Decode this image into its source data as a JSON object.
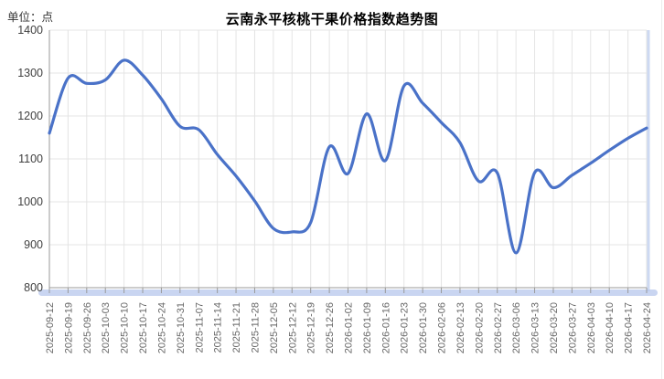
{
  "header": {
    "unit_label": "单位：点",
    "title": "云南永平核桃干果价格指数趋势图"
  },
  "chart_data": {
    "type": "line",
    "title": "云南永平核桃干果价格指数趋势图",
    "unit": "点",
    "smooth": true,
    "grid": true,
    "legend": "none",
    "categories": [
      "2025-09-12",
      "2025-09-19",
      "2025-09-26",
      "2025-10-03",
      "2025-10-10",
      "2025-10-17",
      "2025-10-24",
      "2025-10-31",
      "2025-11-07",
      "2025-11-14",
      "2025-11-21",
      "2025-11-28",
      "2025-12-05",
      "2025-12-12",
      "2025-12-19",
      "2025-12-26",
      "2026-01-02",
      "2026-01-09",
      "2026-01-16",
      "2026-01-23",
      "2026-01-30",
      "2026-02-06",
      "2026-02-13",
      "2026-02-20",
      "2026-02-27",
      "2026-03-06",
      "2026-03-13",
      "2026-03-20",
      "2026-03-27",
      "2026-04-03",
      "2026-04-10",
      "2026-04-17",
      "2026-04-24"
    ],
    "values": [
      1160,
      1288,
      1276,
      1284,
      1330,
      1295,
      1240,
      1176,
      1168,
      1110,
      1060,
      1002,
      938,
      930,
      952,
      1128,
      1066,
      1205,
      1096,
      1270,
      1230,
      1185,
      1138,
      1048,
      1067,
      881,
      1068,
      1033,
      1062,
      1090,
      1120,
      1148,
      1172
    ],
    "ylabel": "点",
    "xlabel": "",
    "ylim": [
      800,
      1400
    ],
    "yticks": [
      800,
      900,
      1000,
      1100,
      1200,
      1300,
      1400
    ],
    "x_label_rotation": 90,
    "colors": {
      "line": "#4a72c8",
      "grid": "#e4e4e4",
      "axis": "#999999",
      "x_tick_label": "#666666",
      "y_tick_label": "#404040",
      "axis_glow": "#b7c7ec",
      "right_edge_glow": "#cdd9f2"
    }
  }
}
